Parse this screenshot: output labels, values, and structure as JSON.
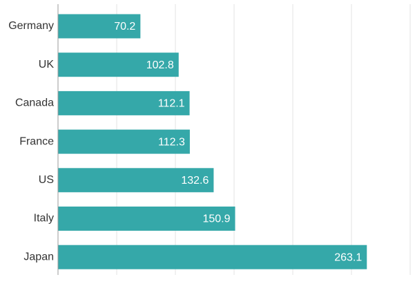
{
  "chart_data": {
    "type": "bar",
    "orientation": "horizontal",
    "title": "",
    "xlabel": "",
    "ylabel": "",
    "categories": [
      "Germany",
      "UK",
      "Canada",
      "France",
      "US",
      "Italy",
      "Japan"
    ],
    "values": [
      70.2,
      102.8,
      112.1,
      112.3,
      132.6,
      150.9,
      263.1
    ],
    "value_labels": [
      "70.2",
      "102.8",
      "112.1",
      "112.3",
      "132.6",
      "150.9",
      "263.1"
    ],
    "xlim": [
      0,
      300
    ],
    "grid_x_values": [
      50,
      100,
      150,
      200,
      250,
      300
    ],
    "x_tick_labels_shown": false,
    "grid": true,
    "legend": "none",
    "colors": {
      "bar": "#35a8a9",
      "grid": "#e3e3e3",
      "axis": "#9a9a9a",
      "category_text": "#333333",
      "value_text": "#ffffff"
    }
  }
}
